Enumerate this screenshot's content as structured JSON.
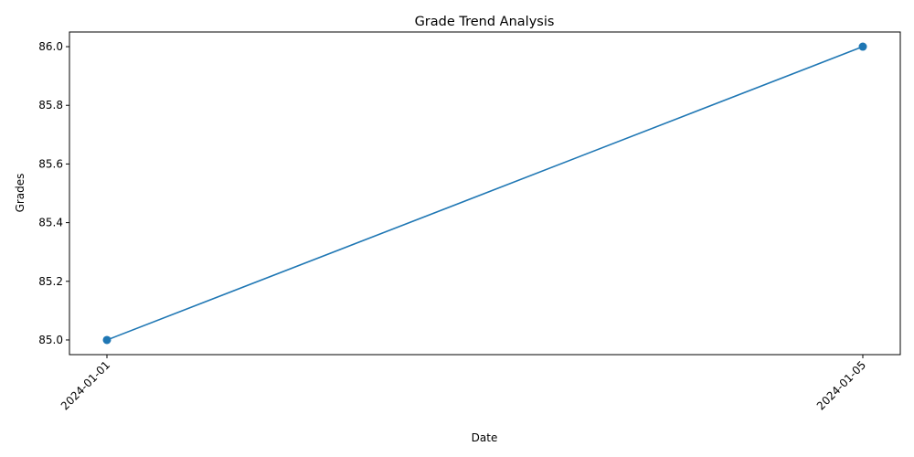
{
  "chart_data": {
    "type": "line",
    "title": "Grade Trend Analysis",
    "xlabel": "Date",
    "ylabel": "Grades",
    "x": [
      "2024-01-01",
      "2024-01-05"
    ],
    "series": [
      {
        "values": [
          85.0,
          86.0
        ],
        "color": "#1f77b4",
        "marker": "circle"
      }
    ],
    "yticks": [
      "85.0",
      "85.2",
      "85.4",
      "85.6",
      "85.8",
      "86.0"
    ],
    "ylim": [
      84.95,
      86.05
    ],
    "grid": false,
    "xtick_rotation": 45
  }
}
